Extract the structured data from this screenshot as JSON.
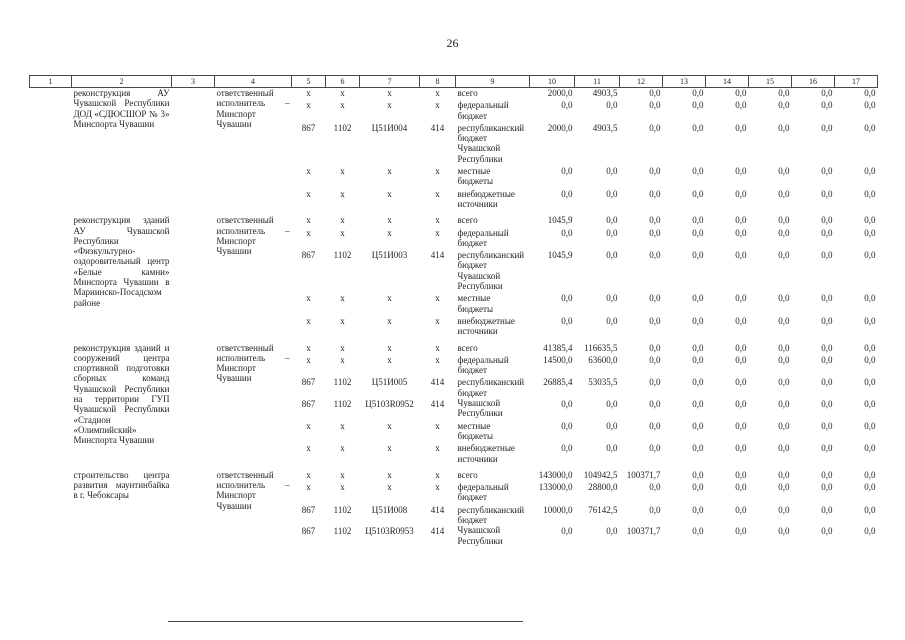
{
  "page": {
    "number": "26"
  },
  "table": {
    "column_numbers": [
      "1",
      "2",
      "3",
      "4",
      "5",
      "6",
      "7",
      "8",
      "9",
      "10",
      "11",
      "12",
      "13",
      "14",
      "15",
      "16",
      "17"
    ],
    "groups": [
      {
        "project": "реконструкция АУ Чувашской Республики ДОД «СДЮСШОР № 3» Минспорта Чувашии",
        "executor": "ответственный исполнитель – Минспорт Чувашии",
        "rows": [
          {
            "label": "всего",
            "lines": [
              {
                "codes": [
                  "х",
                  "х",
                  "х",
                  "х"
                ],
                "values": [
                  "2000,0",
                  "4903,5",
                  "0,0",
                  "0,0",
                  "0,0",
                  "0,0",
                  "0,0",
                  "0,0"
                ]
              }
            ]
          },
          {
            "label": "федеральный бюджет",
            "lines": [
              {
                "codes": [
                  "х",
                  "х",
                  "х",
                  "х"
                ],
                "values": [
                  "0,0",
                  "0,0",
                  "0,0",
                  "0,0",
                  "0,0",
                  "0,0",
                  "0,0",
                  "0,0"
                ]
              }
            ]
          },
          {
            "label": "республиканский бюджет Чувашской Республики",
            "lines": [
              {
                "codes": [
                  "867",
                  "1102",
                  "Ц51И004",
                  "414"
                ],
                "values": [
                  "2000,0",
                  "4903,5",
                  "0,0",
                  "0,0",
                  "0,0",
                  "0,0",
                  "0,0",
                  "0,0"
                ]
              }
            ]
          },
          {
            "label": "местные бюджеты",
            "lines": [
              {
                "codes": [
                  "х",
                  "х",
                  "х",
                  "х"
                ],
                "values": [
                  "0,0",
                  "0,0",
                  "0,0",
                  "0,0",
                  "0,0",
                  "0,0",
                  "0,0",
                  "0,0"
                ]
              }
            ]
          },
          {
            "label": "внебюджетные источники",
            "lines": [
              {
                "codes": [
                  "х",
                  "х",
                  "х",
                  "х"
                ],
                "values": [
                  "0,0",
                  "0,0",
                  "0,0",
                  "0,0",
                  "0,0",
                  "0,0",
                  "0,0",
                  "0,0"
                ]
              }
            ]
          }
        ]
      },
      {
        "project": "реконструкция зданий АУ Чувашской Республики «Физкультурно-оздоровительный центр «Белые камни» Минспорта Чувашии в Мариинско-Посадском районе",
        "executor": "ответственный исполнитель – Минспорт Чувашии",
        "rows": [
          {
            "label": "всего",
            "lines": [
              {
                "codes": [
                  "х",
                  "х",
                  "х",
                  "х"
                ],
                "values": [
                  "1045,9",
                  "0,0",
                  "0,0",
                  "0,0",
                  "0,0",
                  "0,0",
                  "0,0",
                  "0,0"
                ]
              }
            ]
          },
          {
            "label": "федеральный бюджет",
            "lines": [
              {
                "codes": [
                  "х",
                  "х",
                  "х",
                  "х"
                ],
                "values": [
                  "0,0",
                  "0,0",
                  "0,0",
                  "0,0",
                  "0,0",
                  "0,0",
                  "0,0",
                  "0,0"
                ]
              }
            ]
          },
          {
            "label": "республиканский бюджет Чувашской Республики",
            "lines": [
              {
                "codes": [
                  "867",
                  "1102",
                  "Ц51И003",
                  "414"
                ],
                "values": [
                  "1045,9",
                  "0,0",
                  "0,0",
                  "0,0",
                  "0,0",
                  "0,0",
                  "0,0",
                  "0,0"
                ]
              }
            ]
          },
          {
            "label": "местные бюджеты",
            "lines": [
              {
                "codes": [
                  "х",
                  "х",
                  "х",
                  "х"
                ],
                "values": [
                  "0,0",
                  "0,0",
                  "0,0",
                  "0,0",
                  "0,0",
                  "0,0",
                  "0,0",
                  "0,0"
                ]
              }
            ]
          },
          {
            "label": "внебюджетные источники",
            "lines": [
              {
                "codes": [
                  "х",
                  "х",
                  "х",
                  "х"
                ],
                "values": [
                  "0,0",
                  "0,0",
                  "0,0",
                  "0,0",
                  "0,0",
                  "0,0",
                  "0,0",
                  "0,0"
                ]
              }
            ]
          }
        ]
      },
      {
        "project": "реконструкция зданий и сооружений центра спортивной подготовки сборных команд Чувашской Республики на территории ГУП Чувашской Республики «Стадион «Олимпийский» Минспорта Чувашии",
        "executor": "ответственный исполнитель – Минспорт Чувашии",
        "rows": [
          {
            "label": "всего",
            "lines": [
              {
                "codes": [
                  "х",
                  "х",
                  "х",
                  "х"
                ],
                "values": [
                  "41385,4",
                  "116635,5",
                  "0,0",
                  "0,0",
                  "0,0",
                  "0,0",
                  "0,0",
                  "0,0"
                ]
              }
            ]
          },
          {
            "label": "федеральный бюджет",
            "lines": [
              {
                "codes": [
                  "х",
                  "х",
                  "х",
                  "х"
                ],
                "values": [
                  "14500,0",
                  "63600,0",
                  "0,0",
                  "0,0",
                  "0,0",
                  "0,0",
                  "0,0",
                  "0,0"
                ]
              }
            ]
          },
          {
            "label": "республиканский бюджет Чувашской Республики",
            "lines": [
              {
                "codes": [
                  "867",
                  "1102",
                  "Ц51И005",
                  "414"
                ],
                "values": [
                  "26885,4",
                  "53035,5",
                  "0,0",
                  "0,0",
                  "0,0",
                  "0,0",
                  "0,0",
                  "0,0"
                ]
              },
              {
                "codes": [
                  "867",
                  "1102",
                  "Ц5103R0952",
                  "414"
                ],
                "values": [
                  "0,0",
                  "0,0",
                  "0,0",
                  "0,0",
                  "0,0",
                  "0,0",
                  "0,0",
                  "0,0"
                ]
              }
            ]
          },
          {
            "label": "местные бюджеты",
            "lines": [
              {
                "codes": [
                  "х",
                  "х",
                  "х",
                  "х"
                ],
                "values": [
                  "0,0",
                  "0,0",
                  "0,0",
                  "0,0",
                  "0,0",
                  "0,0",
                  "0,0",
                  "0,0"
                ]
              }
            ]
          },
          {
            "label": "внебюджетные источники",
            "lines": [
              {
                "codes": [
                  "х",
                  "х",
                  "х",
                  "х"
                ],
                "values": [
                  "0,0",
                  "0,0",
                  "0,0",
                  "0,0",
                  "0,0",
                  "0,0",
                  "0,0",
                  "0,0"
                ]
              }
            ]
          }
        ]
      },
      {
        "project": "строительство центра развития маунтинбайка в г. Чебоксары",
        "executor": "ответственный исполнитель – Минспорт Чувашии",
        "rows": [
          {
            "label": "всего",
            "lines": [
              {
                "codes": [
                  "х",
                  "х",
                  "х",
                  "х"
                ],
                "values": [
                  "143000,0",
                  "104942,5",
                  "100371,7",
                  "0,0",
                  "0,0",
                  "0,0",
                  "0,0",
                  "0,0"
                ]
              }
            ]
          },
          {
            "label": "федеральный бюджет",
            "lines": [
              {
                "codes": [
                  "х",
                  "х",
                  "х",
                  "х"
                ],
                "values": [
                  "133000,0",
                  "28800,0",
                  "0,0",
                  "0,0",
                  "0,0",
                  "0,0",
                  "0,0",
                  "0,0"
                ]
              }
            ]
          },
          {
            "label": "республиканский бюджет Чувашской Республики",
            "lines": [
              {
                "codes": [
                  "867",
                  "1102",
                  "Ц51И008",
                  "414"
                ],
                "values": [
                  "10000,0",
                  "76142,5",
                  "0,0",
                  "0,0",
                  "0,0",
                  "0,0",
                  "0,0",
                  "0,0"
                ]
              },
              {
                "codes": [
                  "867",
                  "1102",
                  "Ц5103R0953",
                  "414"
                ],
                "values": [
                  "0,0",
                  "0,0",
                  "100371,7",
                  "0,0",
                  "0,0",
                  "0,0",
                  "0,0",
                  "0,0"
                ]
              }
            ]
          }
        ]
      }
    ]
  }
}
